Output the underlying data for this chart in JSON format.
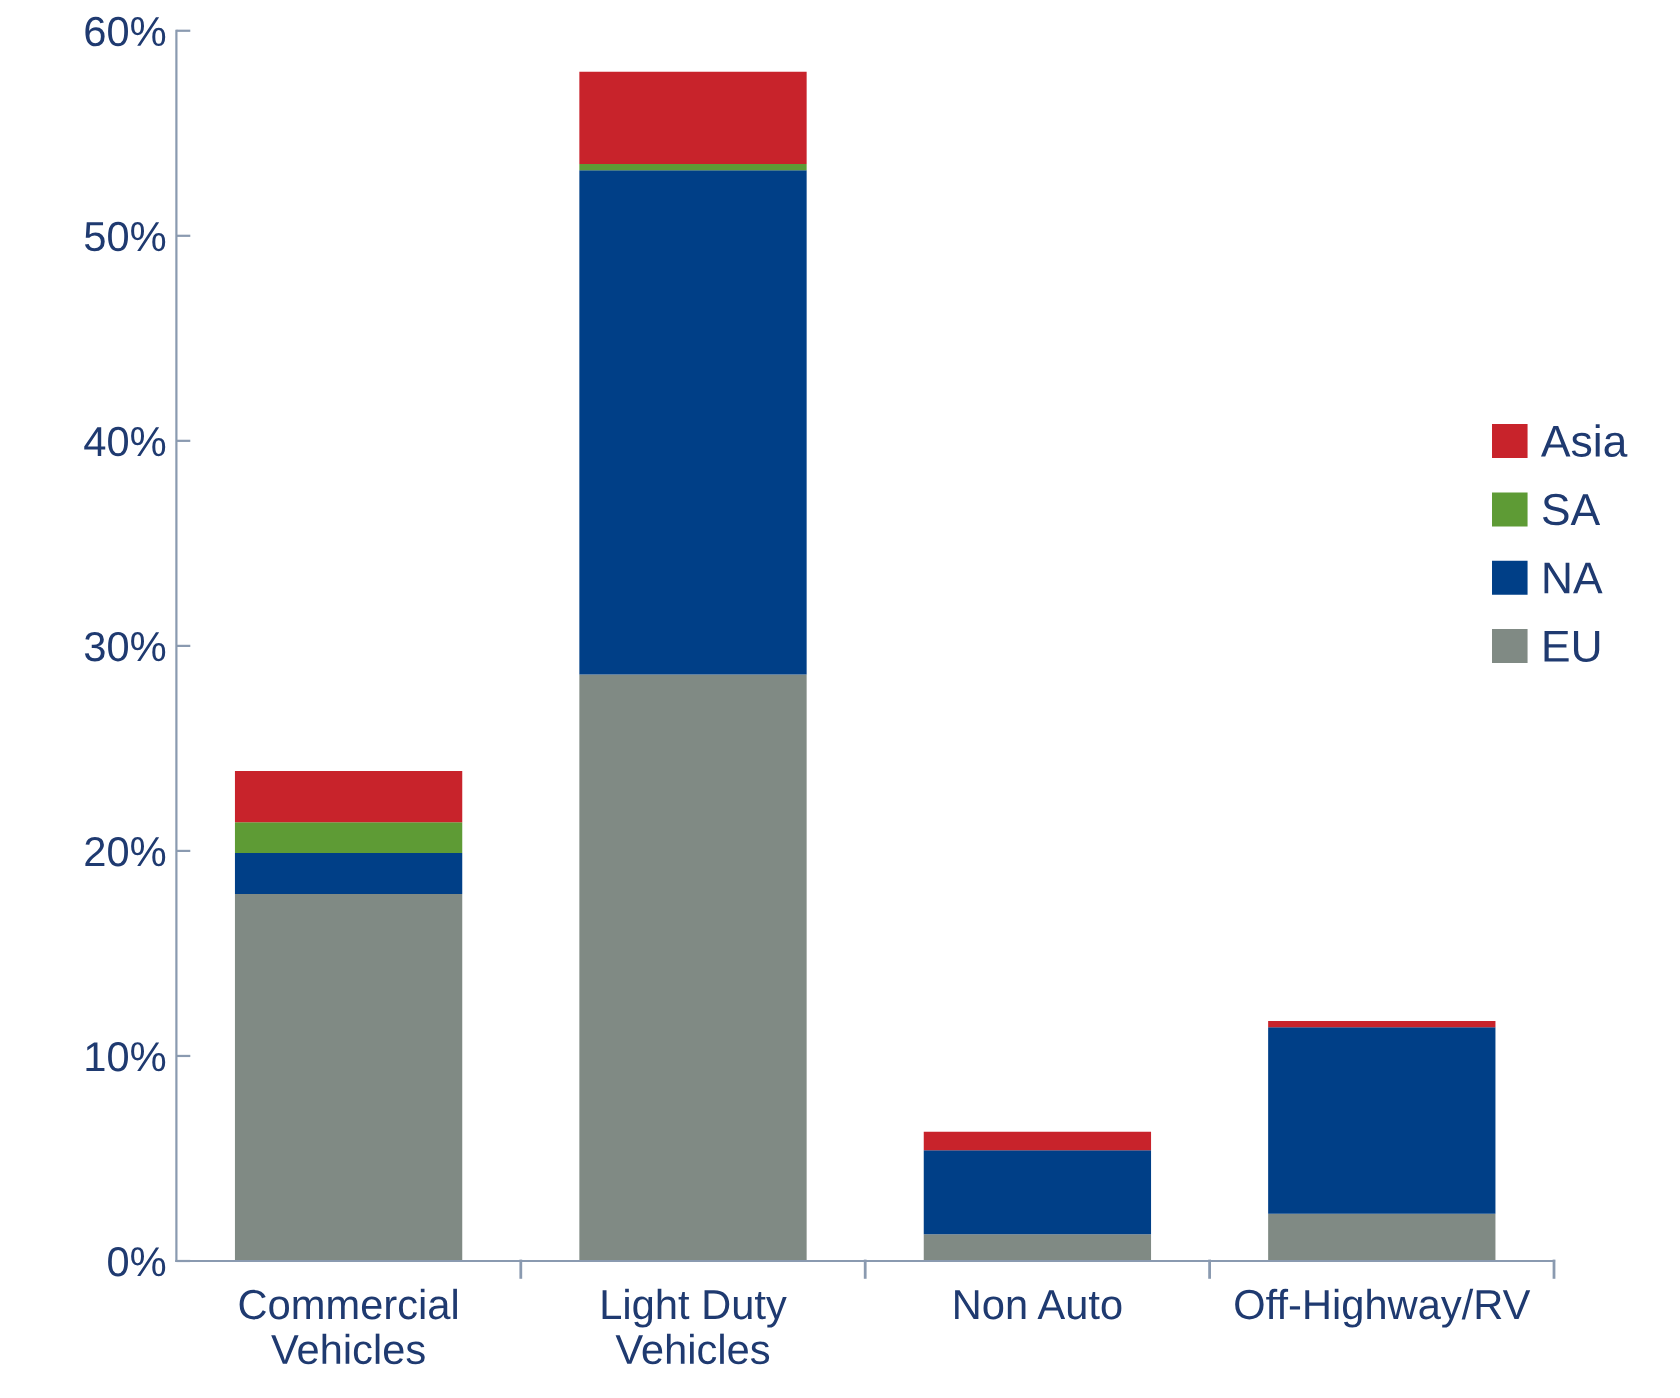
{
  "chart_data": {
    "type": "bar",
    "stacked": true,
    "categories": [
      "Commercial\nVehicles",
      "Light Duty\nVehicles",
      "Non Auto",
      "Off-Highway/RV"
    ],
    "series": [
      {
        "name": "EU",
        "color": "#808a84",
        "values": [
          17.9,
          28.6,
          1.3,
          2.3
        ]
      },
      {
        "name": "NA",
        "color": "#003f87",
        "values": [
          2.0,
          24.6,
          4.1,
          9.1
        ]
      },
      {
        "name": "SA",
        "color": "#5e9b35",
        "values": [
          1.5,
          0.3,
          0,
          0
        ]
      },
      {
        "name": "Asia",
        "color": "#c8232b",
        "values": [
          2.5,
          4.5,
          0.9,
          0.3
        ]
      }
    ],
    "ylim": [
      0,
      60
    ],
    "yticks": [
      {
        "value": 0,
        "label": "0%"
      },
      {
        "value": 10,
        "label": "10%"
      },
      {
        "value": 20,
        "label": "20%"
      },
      {
        "value": 30,
        "label": "30%"
      },
      {
        "value": 40,
        "label": "40%"
      },
      {
        "value": 50,
        "label": "50%"
      },
      {
        "value": 60,
        "label": "60%"
      }
    ],
    "grid": false,
    "legend": "right"
  }
}
